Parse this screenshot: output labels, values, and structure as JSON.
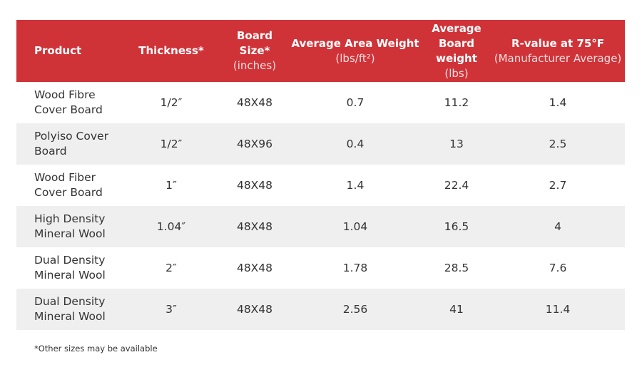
{
  "table": {
    "columns": [
      {
        "title": "Product"
      },
      {
        "title": "Thickness*"
      },
      {
        "title": "Board Size*",
        "unit": "(inches)"
      },
      {
        "title": "Average Area Weight",
        "unit": "(lbs/ft²)"
      },
      {
        "title": "Average Board weight",
        "unit": "(lbs)"
      },
      {
        "title": "R-value at 75°F",
        "unit": "(Manufacturer Average)"
      }
    ],
    "rows": [
      [
        "Wood Fibre Cover Board",
        "1/2″",
        "48X48",
        "0.7",
        "11.2",
        "1.4"
      ],
      [
        "Polyiso Cover Board",
        "1/2″",
        "48X96",
        "0.4",
        "13",
        "2.5"
      ],
      [
        "Wood Fiber Cover Board",
        "1″",
        "48X48",
        "1.4",
        "22.4",
        "2.7"
      ],
      [
        "High Density Mineral Wool",
        "1.04″",
        "48X48",
        "1.04",
        "16.5",
        "4"
      ],
      [
        "Dual Density Mineral Wool",
        "2″",
        "48X48",
        "1.78",
        "28.5",
        "7.6"
      ],
      [
        "Dual Density Mineral Wool",
        "3″",
        "48X48",
        "2.56",
        "41",
        "11.4"
      ]
    ],
    "footnote": "*Other sizes may be available"
  }
}
